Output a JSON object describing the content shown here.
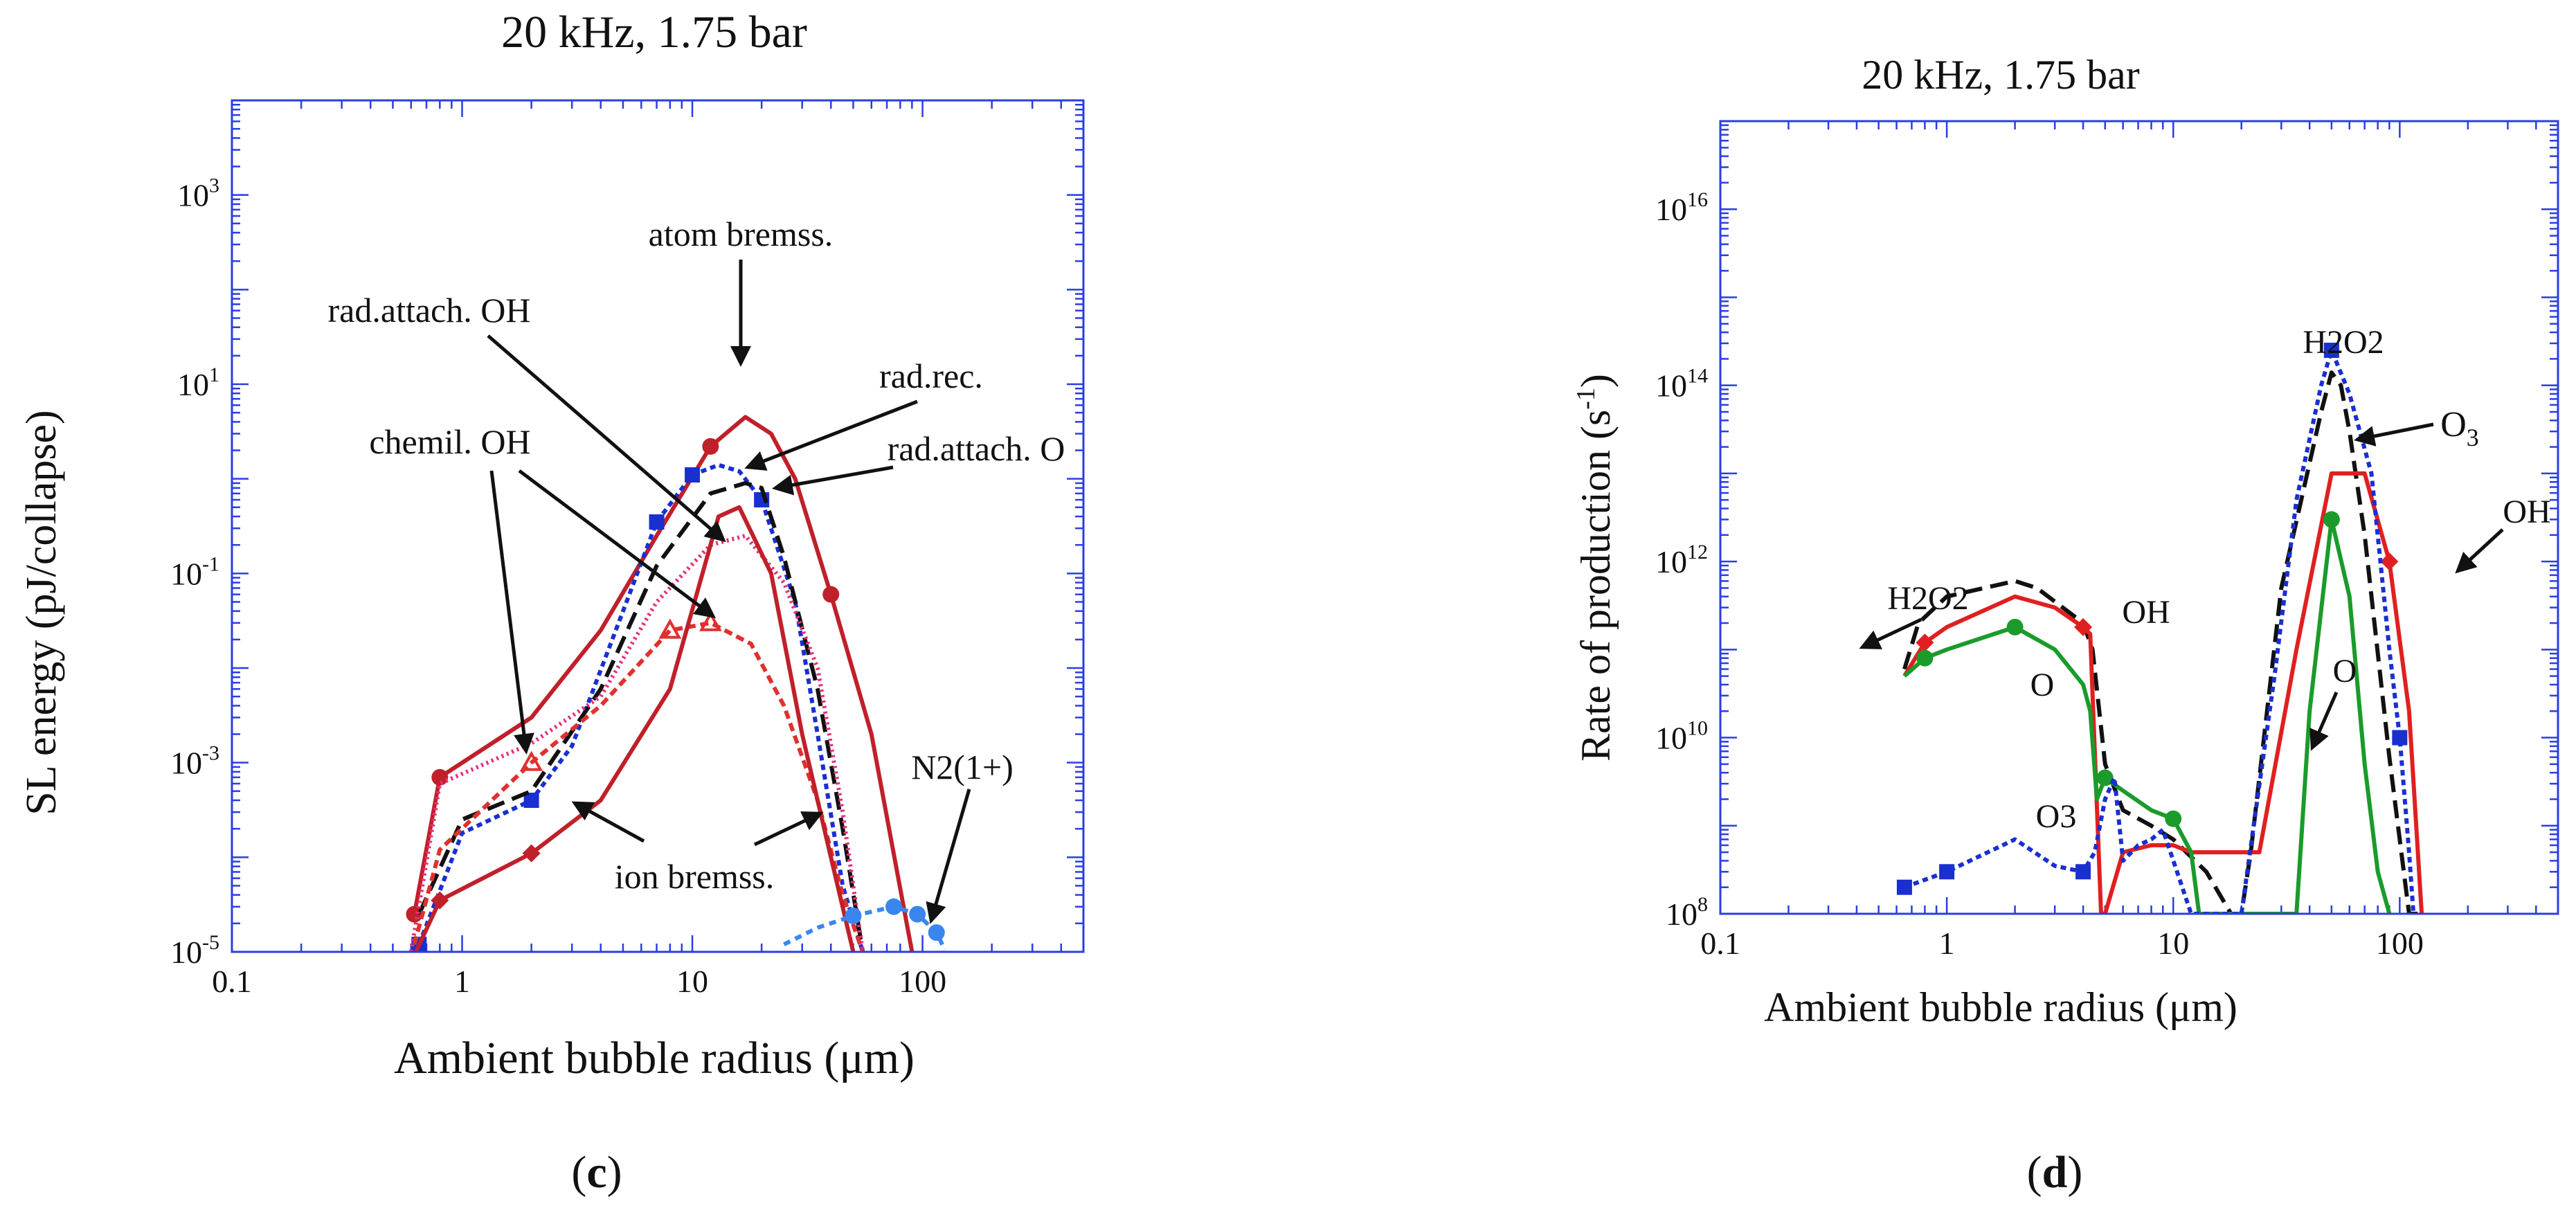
{
  "figure": {
    "background": "#ffffff"
  },
  "chart_data": [
    {
      "type": "line",
      "panel_label": "(c)",
      "panel_letter": "c",
      "title": "20 kHz, 1.75 bar",
      "xlabel": "Ambient bubble radius (μm)",
      "ylabel": "SL energy (pJ/collapse)",
      "x_scale": "log",
      "y_scale": "log",
      "xlim": [
        0.1,
        500
      ],
      "ylim": [
        1e-05,
        10000
      ],
      "x_ticks": [
        {
          "v": 0.1,
          "label": "0.1"
        },
        {
          "v": 1,
          "label": "1"
        },
        {
          "v": 10,
          "label": "10"
        },
        {
          "v": 100,
          "label": "100"
        }
      ],
      "y_ticks": [
        {
          "v": 1e-05,
          "m": "10",
          "e": "-5"
        },
        {
          "v": 0.001,
          "m": "10",
          "e": "-3"
        },
        {
          "v": 0.1,
          "m": "10",
          "e": "-1"
        },
        {
          "v": 10,
          "m": "10",
          "e": "1"
        },
        {
          "v": 1000,
          "m": "10",
          "e": "3"
        }
      ],
      "frame_color": "#2b3ee0",
      "grid": false,
      "series": [
        {
          "color": "#c0202a",
          "dash": "",
          "marker": "circle",
          "x": [
            0.62,
            0.8,
            2,
            4,
            7,
            12,
            17,
            22,
            28,
            40,
            60,
            90
          ],
          "y": [
            2.5e-05,
            0.0007,
            0.003,
            0.025,
            0.25,
            2.2,
            4.5,
            3.0,
            1.0,
            0.06,
            0.002,
            1e-05
          ],
          "markers": [
            0,
            1,
            5,
            9
          ]
        },
        {
          "color": "#1a2fd0",
          "dash": "8 6",
          "marker": "square",
          "x": [
            0.65,
            1,
            2,
            3,
            5,
            7,
            10,
            13,
            16,
            20,
            28,
            35,
            45,
            55
          ],
          "y": [
            1.2e-05,
            0.00018,
            0.0004,
            0.0015,
            0.04,
            0.35,
            1.1,
            1.4,
            1.2,
            0.6,
            0.05,
            0.002,
            5e-05,
            1e-05
          ],
          "markers": [
            0,
            2,
            5,
            6,
            9
          ]
        },
        {
          "color": "#111111",
          "dash": "26 12",
          "marker": "none",
          "x": [
            0.65,
            1,
            2,
            4,
            7,
            12,
            17,
            20,
            25,
            35,
            45,
            55
          ],
          "y": [
            2.5e-05,
            0.00025,
            0.0005,
            0.006,
            0.12,
            0.7,
            0.9,
            0.8,
            0.15,
            0.006,
            0.0002,
            1e-05
          ],
          "markers": []
        },
        {
          "color": "#e5307a",
          "dash": "3 5",
          "marker": "none",
          "x": [
            0.6,
            0.8,
            2,
            4,
            7,
            12,
            17,
            25,
            35,
            45,
            55
          ],
          "y": [
            1e-05,
            0.0006,
            0.0016,
            0.005,
            0.05,
            0.2,
            0.25,
            0.08,
            0.01,
            0.0003,
            1e-05
          ],
          "markers": []
        },
        {
          "color": "#e03030",
          "dash": "12 7",
          "marker": "triangle",
          "x": [
            0.62,
            0.8,
            2,
            4,
            8,
            12,
            18,
            25,
            35,
            45,
            55
          ],
          "y": [
            1.2e-05,
            0.00012,
            0.001,
            0.004,
            0.025,
            0.03,
            0.018,
            0.004,
            0.0004,
            4e-05,
            1e-05
          ],
          "markers": [
            2,
            4,
            5
          ]
        },
        {
          "color": "#c0202a",
          "dash": "",
          "marker": "diamond",
          "x": [
            0.63,
            0.8,
            2,
            4,
            8,
            13,
            16,
            22,
            30,
            40,
            50
          ],
          "y": [
            1e-05,
            3.5e-05,
            0.00011,
            0.0004,
            0.006,
            0.4,
            0.5,
            0.1,
            0.002,
            0.0001,
            1e-05
          ],
          "markers": [
            1,
            2
          ]
        },
        {
          "color": "#3a86ee",
          "dash": "10 8",
          "marker": "circle",
          "x": [
            25,
            35,
            50,
            75,
            95,
            115,
            125
          ],
          "y": [
            1.2e-05,
            1.8e-05,
            2.4e-05,
            3e-05,
            2.5e-05,
            1.6e-05,
            1.05e-05
          ],
          "markers": [
            2,
            3,
            4,
            5
          ]
        }
      ],
      "annotations": [
        {
          "text": "atom bremss.",
          "arrow_to": [
            16,
            6
          ]
        },
        {
          "text": "rad.attach. OH",
          "arrow_to": [
            15,
            0.22
          ]
        },
        {
          "text": "rad.rec.",
          "arrow_to": [
            14,
            1.1
          ]
        },
        {
          "text": "chemil. OH",
          "arrow_to": [
            2,
            0.0011
          ]
        },
        {
          "text": "chemil. OH",
          "arrow_to": [
            12,
            0.032
          ]
        },
        {
          "text": "rad.attach. O",
          "arrow_to": [
            17,
            0.75
          ]
        },
        {
          "text": "ion bremss.",
          "arrow_to": [
            3.5,
            0.0002
          ]
        },
        {
          "text": "ion bremss.",
          "arrow_to": [
            35,
            0.0002
          ]
        },
        {
          "text": "N2(1+)",
          "arrow_to": [
            100,
            1.6e-05
          ]
        }
      ]
    },
    {
      "type": "line",
      "panel_label": "(d)",
      "panel_letter": "d",
      "title": "20 kHz, 1.75 bar",
      "xlabel": "Ambient bubble radius (μm)",
      "ylabel": "Rate of production (s",
      "ylabel_unit_exponent": "-1",
      "ylabel_close": ")",
      "x_scale": "log",
      "y_scale": "log",
      "xlim": [
        0.1,
        500
      ],
      "ylim": [
        100000000.0,
        1e+17
      ],
      "x_ticks": [
        {
          "v": 0.1,
          "label": "0.1"
        },
        {
          "v": 1,
          "label": "1"
        },
        {
          "v": 10,
          "label": "10"
        },
        {
          "v": 100,
          "label": "100"
        }
      ],
      "y_ticks": [
        {
          "v": 100000000.0,
          "m": "10",
          "e": "8"
        },
        {
          "v": 10000000000.0,
          "m": "10",
          "e": "10"
        },
        {
          "v": 1000000000000.0,
          "m": "10",
          "e": "12"
        },
        {
          "v": 100000000000000.0,
          "m": "10",
          "e": "14"
        },
        {
          "v": 1e+16,
          "m": "10",
          "e": "16"
        }
      ],
      "frame_color": "#2b3ee0",
      "grid": false,
      "series": [
        {
          "name": "H2O2",
          "color": "#111111",
          "dash": "26 12",
          "marker": "none",
          "x": [
            0.65,
            0.75,
            1,
            2,
            2.5,
            4,
            4.4,
            5,
            6,
            8,
            10,
            14,
            18,
            20,
            22,
            30,
            45,
            50,
            55,
            60,
            70,
            90,
            110,
            120
          ],
          "y": [
            60000000000.0,
            200000000000.0,
            400000000000.0,
            600000000000.0,
            500000000000.0,
            200000000000.0,
            100000000000.0,
            5000000000.0,
            1500000000.0,
            1000000000.0,
            700000000.0,
            300000000.0,
            100000000.0,
            100000000.0,
            500000000.0,
            500000000000.0,
            50000000000000.0,
            140000000000000.0,
            100000000000000.0,
            30000000000000.0,
            2000000000000.0,
            6000000000.0,
            100000000.0,
            100000000.0
          ],
          "markers": []
        },
        {
          "name": "OH",
          "color": "#e02020",
          "dash": "",
          "marker": "diamond",
          "x": [
            0.65,
            0.8,
            1,
            2,
            3,
            4,
            4.3,
            4.8,
            5,
            6,
            8,
            10,
            12,
            18,
            24,
            35,
            50,
            70,
            90,
            110,
            125
          ],
          "y": [
            50000000000.0,
            120000000000.0,
            180000000000.0,
            400000000000.0,
            300000000000.0,
            180000000000.0,
            150000000000.0,
            100000000.0,
            100000000.0,
            500000000.0,
            600000000.0,
            600000000.0,
            500000000.0,
            500000000.0,
            500000000.0,
            100000000000.0,
            10000000000000.0,
            10000000000000.0,
            1000000000000.0,
            20000000000.0,
            100000000.0
          ],
          "markers": [
            1,
            5,
            18
          ]
        },
        {
          "name": "O",
          "color": "#1a9b2a",
          "dash": "",
          "marker": "circle",
          "x": [
            0.65,
            0.8,
            1,
            2,
            3,
            4,
            4.3,
            4.6,
            5,
            6,
            8,
            10,
            12,
            13,
            35,
            40,
            50,
            60,
            70,
            80,
            90
          ],
          "y": [
            50000000000.0,
            80000000000.0,
            100000000000.0,
            180000000000.0,
            100000000000.0,
            40000000000.0,
            20000000000.0,
            2000000000.0,
            3500000000.0,
            2500000000.0,
            1500000000.0,
            1200000000.0,
            500000000.0,
            100000000.0,
            100000000.0,
            20000000000.0,
            3000000000000.0,
            400000000000.0,
            5000000000.0,
            300000000.0,
            100000000.0
          ],
          "markers": [
            1,
            3,
            8,
            11,
            16
          ]
        },
        {
          "name": "O3",
          "color": "#1a2fd0",
          "dash": "8 6",
          "marker": "square",
          "x": [
            0.65,
            1,
            2,
            3,
            4,
            4.5,
            5,
            5.5,
            6,
            7,
            8,
            9,
            12,
            14,
            18,
            20,
            28,
            35,
            45,
            50,
            60,
            75,
            90,
            100,
            110,
            115
          ],
          "y": [
            200000000.0,
            300000000.0,
            700000000.0,
            350000000.0,
            300000000.0,
            500000000.0,
            2000000000.0,
            3500000000.0,
            400000000.0,
            600000000.0,
            700000000.0,
            900000000.0,
            100000000.0,
            100000000.0,
            100000000.0,
            100000000.0,
            50000000000.0,
            5000000000000.0,
            100000000000000.0,
            250000000000000.0,
            80000000000000.0,
            10000000000000.0,
            100000000000.0,
            10000000000.0,
            500000000.0,
            100000000.0
          ],
          "markers": [
            0,
            1,
            4,
            19,
            23
          ]
        }
      ],
      "annotations": [
        {
          "text": "H2O2",
          "arrow_to": [
            0.8,
            250000000000.0
          ]
        },
        {
          "text": "O",
          "arrow_to": null
        },
        {
          "text": "OH",
          "arrow_to": null
        },
        {
          "text": "O3",
          "arrow_to": null
        },
        {
          "text": "H2O2",
          "arrow_to": null
        },
        {
          "text": "O",
          "sub": "3",
          "arrow_to": [
            52,
            250000000000000.0
          ]
        },
        {
          "text": "OH",
          "arrow_to": [
            95,
            1000000000000.0
          ]
        },
        {
          "text": "O",
          "arrow_to": [
            72,
            10000000000.0
          ]
        }
      ]
    }
  ]
}
